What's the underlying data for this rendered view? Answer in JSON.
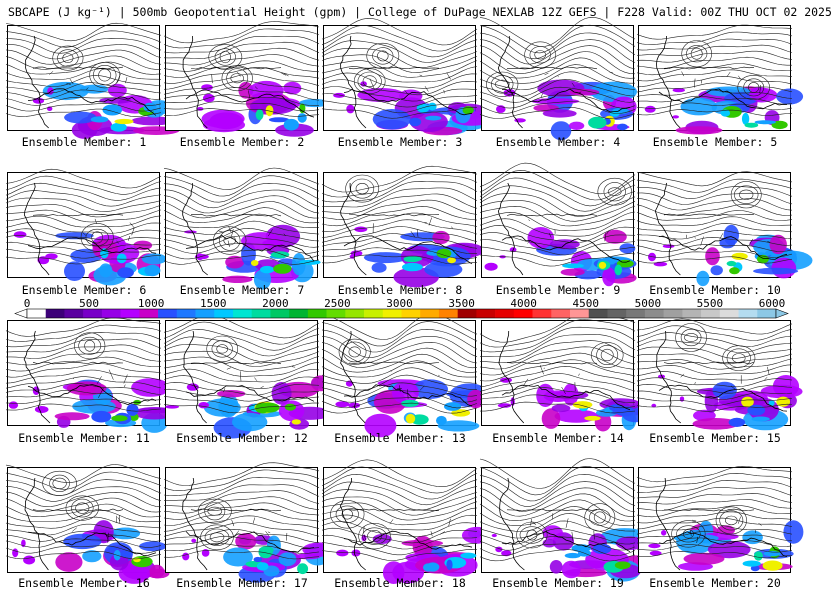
{
  "header": {
    "title": "SBCAPE (J kg⁻¹) | 500mb Geopotential Height (gpm) | College of DuPage NEXLAB 12Z GEFS | F228 Valid: 00Z THU OCT 02 2025"
  },
  "panels": [
    {
      "label": "Ensemble Member: 1"
    },
    {
      "label": "Ensemble Member: 2"
    },
    {
      "label": "Ensemble Member: 3"
    },
    {
      "label": "Ensemble Member: 4"
    },
    {
      "label": "Ensemble Member: 5"
    },
    {
      "label": "Ensemble Member: 6"
    },
    {
      "label": "Ensemble Member: 7"
    },
    {
      "label": "Ensemble Member: 8"
    },
    {
      "label": "Ensemble Member: 9"
    },
    {
      "label": "Ensemble Member: 10"
    },
    {
      "label": "Ensemble Member: 11"
    },
    {
      "label": "Ensemble Member: 12"
    },
    {
      "label": "Ensemble Member: 13"
    },
    {
      "label": "Ensemble Member: 14"
    },
    {
      "label": "Ensemble Member: 15"
    },
    {
      "label": "Ensemble Member: 16"
    },
    {
      "label": "Ensemble Member: 17"
    },
    {
      "label": "Ensemble Member: 18"
    },
    {
      "label": "Ensemble Member: 19"
    },
    {
      "label": "Ensemble Member: 20"
    }
  ],
  "colorbar": {
    "ticks": [
      "0",
      "500",
      "1000",
      "1500",
      "2000",
      "2500",
      "3000",
      "3500",
      "4000",
      "4500",
      "5000",
      "5500",
      "6000"
    ],
    "colors": [
      "#ffffff",
      "#3c0078",
      "#5a00a0",
      "#7800c8",
      "#9600e6",
      "#b400ff",
      "#c800c8",
      "#2850ff",
      "#1e78ff",
      "#14a0ff",
      "#00c8ff",
      "#00e6d2",
      "#00dca0",
      "#00c864",
      "#00b432",
      "#32c800",
      "#64dc00",
      "#96e600",
      "#c8f000",
      "#f0f000",
      "#ffd200",
      "#ffaa00",
      "#ff8200",
      "#a00000",
      "#c80000",
      "#e60000",
      "#ff0000",
      "#ff3232",
      "#ff6464",
      "#ff9696",
      "#505050",
      "#646464",
      "#787878",
      "#8c8c8c",
      "#a0a0a0",
      "#b4b4b4",
      "#c8c8c8",
      "#dcdcdc",
      "#b4dcf0",
      "#8cc8e6"
    ]
  }
}
